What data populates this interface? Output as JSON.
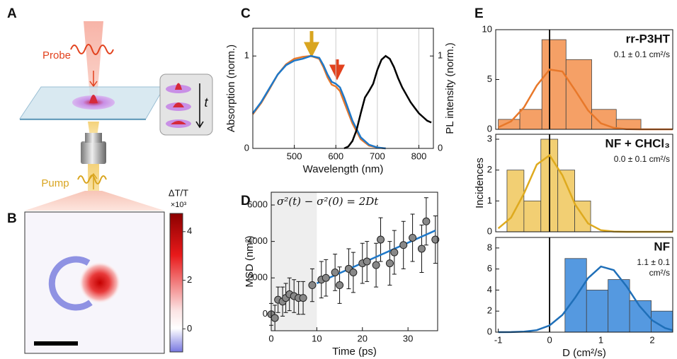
{
  "panel_labels": [
    "A",
    "B",
    "C",
    "D",
    "E"
  ],
  "schematic": {
    "probe": "Probe",
    "pump": "Pump",
    "time": "t"
  },
  "map": {
    "colorbar_title": "ΔT/T",
    "colorbar_scale": "×10³",
    "colorbar_ticks": [
      4,
      2,
      0
    ],
    "clim": [
      -0.95,
      4.75
    ]
  },
  "chart_data": [
    {
      "type": "line",
      "x_label": "Wavelength (nm)",
      "y_label": "Absorption (norm.)",
      "y2_label": "PL intensity (norm.)",
      "xlim": [
        400,
        835
      ],
      "xticks": [
        500,
        600,
        700,
        800
      ],
      "ylim": [
        0,
        1.3
      ],
      "yticks": [
        0,
        1
      ],
      "y2lim": [
        0,
        1.3
      ],
      "y2ticks": [
        0,
        1
      ],
      "grid": "x",
      "series": [
        {
          "color": "#e8782a",
          "x": [
            400,
            420,
            440,
            460,
            480,
            500,
            520,
            540,
            560,
            570,
            580,
            590,
            600,
            610,
            620,
            640,
            660,
            680,
            700,
            720
          ],
          "values": [
            0.37,
            0.49,
            0.64,
            0.8,
            0.91,
            0.97,
            0.99,
            1.0,
            0.97,
            0.88,
            0.77,
            0.69,
            0.67,
            0.62,
            0.5,
            0.27,
            0.1,
            0.03,
            0.01,
            0
          ]
        },
        {
          "color": "#1f78c8",
          "x": [
            400,
            420,
            440,
            460,
            480,
            500,
            520,
            540,
            560,
            570,
            580,
            590,
            600,
            610,
            620,
            640,
            660,
            680,
            700,
            720
          ],
          "values": [
            0.38,
            0.5,
            0.65,
            0.8,
            0.9,
            0.95,
            0.97,
            1.0,
            0.98,
            0.9,
            0.8,
            0.72,
            0.7,
            0.66,
            0.55,
            0.3,
            0.12,
            0.04,
            0.01,
            0
          ]
        },
        {
          "color": "#000000",
          "axis": "y2",
          "x": [
            620,
            630,
            640,
            650,
            660,
            670,
            680,
            690,
            700,
            710,
            720,
            730,
            740,
            750,
            760,
            770,
            780,
            790,
            800,
            810,
            820,
            830
          ],
          "values": [
            0,
            0.02,
            0.08,
            0.2,
            0.38,
            0.55,
            0.62,
            0.7,
            0.85,
            0.96,
            1.0,
            0.97,
            0.88,
            0.76,
            0.66,
            0.58,
            0.5,
            0.44,
            0.38,
            0.34,
            0.3,
            0.28
          ]
        }
      ]
    },
    {
      "type": "scatter",
      "x_label": "Time (ps)",
      "y_label": "MSD (nm²)",
      "annotation": "σ²(t) − σ²(0) = 2Dt",
      "xlim": [
        0,
        36.5
      ],
      "xticks": [
        0,
        10,
        20,
        30
      ],
      "ylim": [
        -900,
        6700
      ],
      "yticks": [
        0,
        2000,
        4000,
        6000
      ],
      "shaded_region": [
        0,
        10
      ],
      "color": "#888888",
      "x": [
        0,
        0.8,
        1.5,
        2.5,
        3.2,
        4,
        5,
        6,
        7,
        9,
        11,
        12,
        14,
        15,
        17,
        18,
        20,
        21,
        23,
        24,
        26,
        27,
        29,
        31,
        33,
        34,
        36
      ],
      "values": [
        0,
        -200,
        800,
        700,
        900,
        1100,
        1000,
        900,
        900,
        1600,
        1900,
        2000,
        2300,
        1600,
        2500,
        2300,
        2800,
        2900,
        2700,
        4100,
        2800,
        3400,
        3800,
        4200,
        3600,
        5100,
        4100
      ],
      "errors": [
        600,
        700,
        700,
        800,
        800,
        900,
        900,
        900,
        900,
        900,
        1000,
        1000,
        1000,
        1000,
        1100,
        1100,
        1100,
        1100,
        1200,
        1200,
        1200,
        1200,
        1300,
        1300,
        1300,
        1300,
        1300
      ],
      "fit": {
        "color": "#1f78c8",
        "x": [
          10,
          36
        ],
        "values": [
          1700,
          4600
        ]
      }
    },
    {
      "type": "histogram",
      "label": "rr-P3HT",
      "label_color": "#e8782a",
      "notes": [
        "0.1 ± 0.1 cm²/s"
      ],
      "xlim": [
        -1.05,
        2.4
      ],
      "ylim": [
        0,
        10
      ],
      "yticks": [
        0,
        5,
        10
      ],
      "vline": 0,
      "color": "#f5a066",
      "bins": [
        -1,
        -0.58,
        -0.15,
        0.32,
        0.82,
        1.3,
        1.78
      ],
      "counts": [
        1,
        2,
        9,
        7,
        2,
        1
      ],
      "fit": {
        "color": "#e8782a",
        "x": [
          -1,
          -0.75,
          -0.5,
          -0.25,
          0,
          0.25,
          0.5,
          0.75,
          1,
          1.25,
          1.5,
          1.75,
          2,
          2.25,
          2.4
        ],
        "values": [
          0.2,
          0.8,
          2.2,
          4.4,
          6.0,
          5.8,
          3.9,
          1.9,
          0.6,
          0.15,
          0.02,
          0,
          0,
          0,
          0
        ]
      }
    },
    {
      "type": "histogram",
      "label": "NF + CHCl₃",
      "label_color": "#deaa1f",
      "notes": [
        "0.0 ± 0.1 cm²/s"
      ],
      "y_label": "Incidences",
      "xlim": [
        -1.05,
        2.4
      ],
      "ylim": [
        0,
        3.16
      ],
      "yticks": [
        0,
        1,
        2,
        3
      ],
      "vline": 0,
      "color": "#f2cf73",
      "bins": [
        -0.83,
        -0.5,
        -0.17,
        0.16,
        0.49,
        0.8
      ],
      "counts": [
        2,
        1,
        3,
        2,
        1
      ],
      "fit": {
        "color": "#deaa1f",
        "x": [
          -1,
          -0.75,
          -0.5,
          -0.25,
          0,
          0.25,
          0.5,
          0.75,
          1,
          1.25,
          1.5,
          1.75,
          2,
          2.25,
          2.4
        ],
        "values": [
          0.11,
          0.46,
          1.24,
          2.18,
          2.48,
          1.83,
          0.88,
          0.27,
          0.05,
          0.01,
          0,
          0,
          0,
          0,
          0
        ]
      }
    },
    {
      "type": "histogram",
      "label": "NF",
      "label_color": "#1f78c8",
      "notes": [
        "1.1 ± 0.1",
        "cm²/s"
      ],
      "x_label": "D (cm²/s)",
      "xlim": [
        -1.05,
        2.4
      ],
      "xticks": [
        -1,
        0,
        1,
        2
      ],
      "ylim": [
        0,
        9
      ],
      "yticks": [
        0,
        2,
        4,
        6,
        8
      ],
      "vline": 0,
      "color": "#5599e0",
      "bins": [
        0.3,
        0.72,
        1.14,
        1.56,
        1.98,
        2.4
      ],
      "counts": [
        7,
        4,
        5,
        3,
        2
      ],
      "fit": {
        "color": "#1f6fb8",
        "x": [
          -1,
          -0.75,
          -0.5,
          -0.25,
          0,
          0.25,
          0.5,
          0.75,
          1,
          1.25,
          1.5,
          1.75,
          2,
          2.25,
          2.4
        ],
        "values": [
          0,
          0.01,
          0.05,
          0.19,
          0.64,
          1.64,
          3.29,
          5.13,
          6.24,
          5.9,
          4.35,
          2.5,
          1.12,
          0.39,
          0.18
        ]
      }
    }
  ]
}
